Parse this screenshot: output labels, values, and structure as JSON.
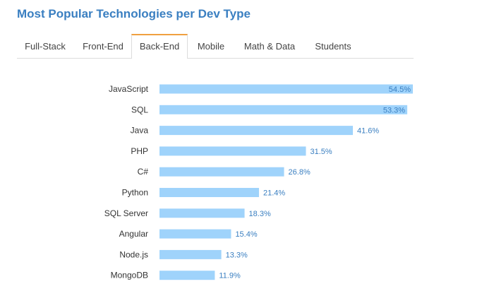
{
  "title": "Most Popular Technologies per Dev Type",
  "tabs": [
    {
      "label": "Full-Stack",
      "active": false
    },
    {
      "label": "Front-End",
      "active": false
    },
    {
      "label": "Back-End",
      "active": true
    },
    {
      "label": "Mobile",
      "active": false
    },
    {
      "label": "Math & Data",
      "active": false
    },
    {
      "label": "Students",
      "active": false
    }
  ],
  "colors": {
    "bar": "#9fd3fb",
    "value_label": "#3a7fc1",
    "title": "#3a7fc1",
    "active_tab_accent": "#f0a040"
  },
  "chart_data": {
    "type": "bar",
    "orientation": "horizontal",
    "categories": [
      "JavaScript",
      "SQL",
      "Java",
      "PHP",
      "C#",
      "Python",
      "SQL Server",
      "Angular",
      "Node.js",
      "MongoDB"
    ],
    "values": [
      54.5,
      53.3,
      41.6,
      31.5,
      26.8,
      21.4,
      18.3,
      15.4,
      13.3,
      11.9
    ],
    "value_labels": [
      "54.5%",
      "53.3%",
      "41.6%",
      "31.5%",
      "26.8%",
      "21.4%",
      "18.3%",
      "15.4%",
      "13.3%",
      "11.9%"
    ],
    "xlim": [
      0,
      54.5
    ],
    "grid": false,
    "legend": "none"
  }
}
